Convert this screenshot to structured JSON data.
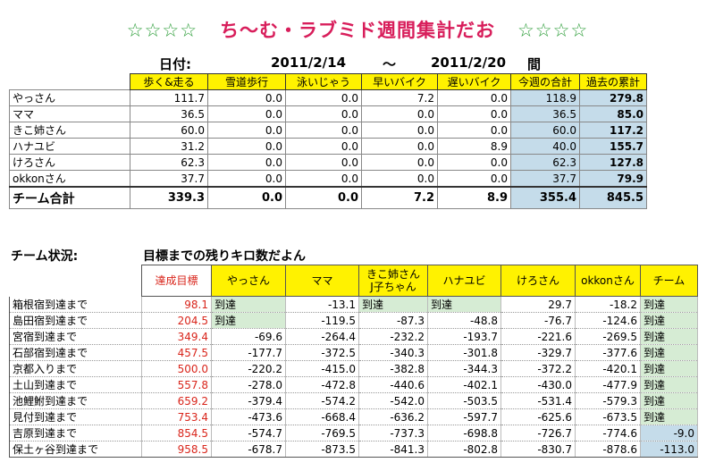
{
  "title": {
    "stars_left": "☆☆☆☆",
    "main": "ち～む・ラブミド週間集計だお",
    "stars_right": "☆☆☆☆"
  },
  "dates": {
    "label": "日付:",
    "start": "2011/2/14",
    "sep": "～",
    "end": "2011/2/20",
    "suffix": "間"
  },
  "weekly": {
    "headers": [
      "歩く&走る",
      "雪道歩行",
      "泳いじゃう",
      "早いバイク",
      "遅いバイク",
      "今週の合計",
      "過去の累計"
    ],
    "rows": [
      {
        "name": "やっさん",
        "values": [
          "111.7",
          "0.0",
          "0.0",
          "7.2",
          "0.0",
          "118.9",
          "279.8"
        ]
      },
      {
        "name": "ママ",
        "values": [
          "36.5",
          "0.0",
          "0.0",
          "0.0",
          "0.0",
          "36.5",
          "85.0"
        ]
      },
      {
        "name": "きこ姉さん",
        "values": [
          "60.0",
          "0.0",
          "0.0",
          "0.0",
          "0.0",
          "60.0",
          "117.2"
        ]
      },
      {
        "name": "ハナユビ",
        "values": [
          "31.2",
          "0.0",
          "0.0",
          "0.0",
          "8.9",
          "40.0",
          "155.7"
        ]
      },
      {
        "name": "けろさん",
        "values": [
          "62.3",
          "0.0",
          "0.0",
          "0.0",
          "0.0",
          "62.3",
          "127.8"
        ]
      },
      {
        "name": "okkonさん",
        "values": [
          "37.7",
          "0.0",
          "0.0",
          "0.0",
          "0.0",
          "37.7",
          "79.9"
        ]
      }
    ],
    "total": {
      "name": "チーム合計",
      "values": [
        "339.3",
        "0.0",
        "0.0",
        "7.2",
        "8.9",
        "355.4",
        "845.5"
      ]
    }
  },
  "status": {
    "label": "チーム状況:",
    "subtitle": "目標までの残りキロ数だよん",
    "headers": [
      "達成目標",
      "やっさん",
      "ママ",
      "きこ姉さん\nJ子ちゃん",
      "ハナユビ",
      "けろさん",
      "okkonさん",
      "チーム"
    ],
    "reached_text": "到達",
    "rows": [
      {
        "name": "箱根宿到達まで",
        "values": [
          "98.1",
          "到達",
          "-13.1",
          "到達",
          "到達",
          "29.7",
          "-18.2",
          "到達"
        ]
      },
      {
        "name": "島田宿到達まで",
        "values": [
          "204.5",
          "到達",
          "-119.5",
          "-87.3",
          "-48.8",
          "-76.7",
          "-124.6",
          "到達"
        ]
      },
      {
        "name": "宮宿到達まで",
        "values": [
          "349.4",
          "-69.6",
          "-264.4",
          "-232.2",
          "-193.7",
          "-221.6",
          "-269.5",
          "到達"
        ]
      },
      {
        "name": "石部宿到達まで",
        "values": [
          "457.5",
          "-177.7",
          "-372.5",
          "-340.3",
          "-301.8",
          "-329.7",
          "-377.6",
          "到達"
        ]
      },
      {
        "name": "京都入りまで",
        "values": [
          "500.0",
          "-220.2",
          "-415.0",
          "-382.8",
          "-344.3",
          "-372.2",
          "-420.1",
          "到達"
        ]
      },
      {
        "name": "土山到達まで",
        "values": [
          "557.8",
          "-278.0",
          "-472.8",
          "-440.6",
          "-402.1",
          "-430.0",
          "-477.9",
          "到達"
        ]
      },
      {
        "name": "池鯉鮒到達まで",
        "values": [
          "659.2",
          "-379.4",
          "-574.2",
          "-542.0",
          "-503.5",
          "-531.4",
          "-579.3",
          "到達"
        ]
      },
      {
        "name": "見付到達まで",
        "values": [
          "753.4",
          "-473.6",
          "-668.4",
          "-636.2",
          "-597.7",
          "-625.6",
          "-673.5",
          "到達"
        ]
      },
      {
        "name": "吉原到達まで",
        "values": [
          "854.5",
          "-574.7",
          "-769.5",
          "-737.3",
          "-698.8",
          "-726.7",
          "-774.6",
          "-9.0"
        ]
      },
      {
        "name": "保土ヶ谷到達まで",
        "values": [
          "958.5",
          "-678.7",
          "-873.5",
          "-841.3",
          "-802.8",
          "-830.7",
          "-878.6",
          "-113.0"
        ]
      }
    ]
  }
}
